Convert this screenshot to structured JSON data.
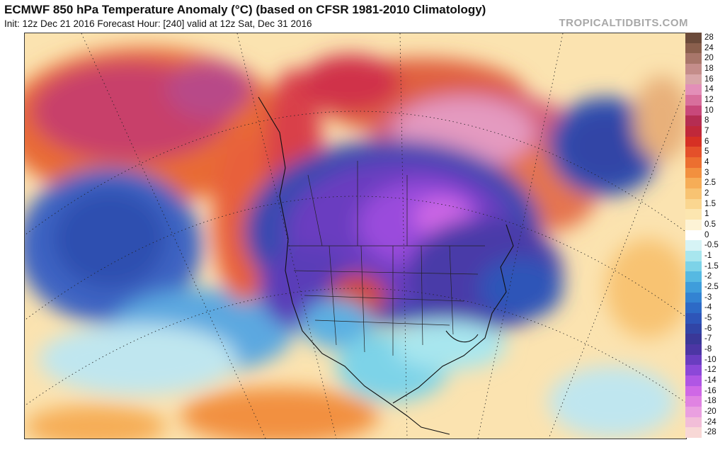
{
  "header": {
    "title": "ECMWF 850 hPa Temperature Anomaly (°C) (based on CFSR 1981-2010 Climatology)",
    "subtitle": "Init: 12z Dec 21 2016   Forecast Hour: [240]   valid at 12z Sat, Dec 31 2016",
    "watermark": "TROPICALTIDBITS.COM"
  },
  "colorbar": {
    "levels": [
      {
        "label": "28",
        "color": "#6b4a3a"
      },
      {
        "label": "24",
        "color": "#8a5f4d"
      },
      {
        "label": "20",
        "color": "#a8766a"
      },
      {
        "label": "18",
        "color": "#c48d8a"
      },
      {
        "label": "16",
        "color": "#d8a6a8"
      },
      {
        "label": "14",
        "color": "#e38fb8"
      },
      {
        "label": "12",
        "color": "#d86f9c"
      },
      {
        "label": "10",
        "color": "#c8487a"
      },
      {
        "label": "8",
        "color": "#b52d52"
      },
      {
        "label": "7",
        "color": "#c0283a"
      },
      {
        "label": "6",
        "color": "#d63024"
      },
      {
        "label": "5",
        "color": "#e4502a"
      },
      {
        "label": "4",
        "color": "#ec6f30"
      },
      {
        "label": "3",
        "color": "#f2903f"
      },
      {
        "label": "2.5",
        "color": "#f6ad57"
      },
      {
        "label": "2",
        "color": "#f8c372"
      },
      {
        "label": "1.5",
        "color": "#fad690"
      },
      {
        "label": "1",
        "color": "#fce6b0"
      },
      {
        "label": "0.5",
        "color": "#fdf3d6"
      },
      {
        "label": "0",
        "color": "#ffffff"
      },
      {
        "label": "-0.5",
        "color": "#d6f3f5"
      },
      {
        "label": "-1",
        "color": "#a8e6ee"
      },
      {
        "label": "-1.5",
        "color": "#7dd3e8"
      },
      {
        "label": "-2",
        "color": "#56b9e2"
      },
      {
        "label": "-2.5",
        "color": "#3f9ddb"
      },
      {
        "label": "-3",
        "color": "#3383d2"
      },
      {
        "label": "-4",
        "color": "#2d6ac6"
      },
      {
        "label": "-5",
        "color": "#2e55b8"
      },
      {
        "label": "-6",
        "color": "#3145a6"
      },
      {
        "label": "-7",
        "color": "#3a3898"
      },
      {
        "label": "-8",
        "color": "#4c36a4"
      },
      {
        "label": "-10",
        "color": "#6a3dc0"
      },
      {
        "label": "-12",
        "color": "#8c48d8"
      },
      {
        "label": "-14",
        "color": "#b056e4"
      },
      {
        "label": "-16",
        "color": "#cf68e6"
      },
      {
        "label": "-18",
        "color": "#e083e2"
      },
      {
        "label": "-20",
        "color": "#eaa0e0"
      },
      {
        "label": "-24",
        "color": "#f2bed8"
      },
      {
        "label": "-28",
        "color": "#f8d8d6"
      }
    ]
  }
}
